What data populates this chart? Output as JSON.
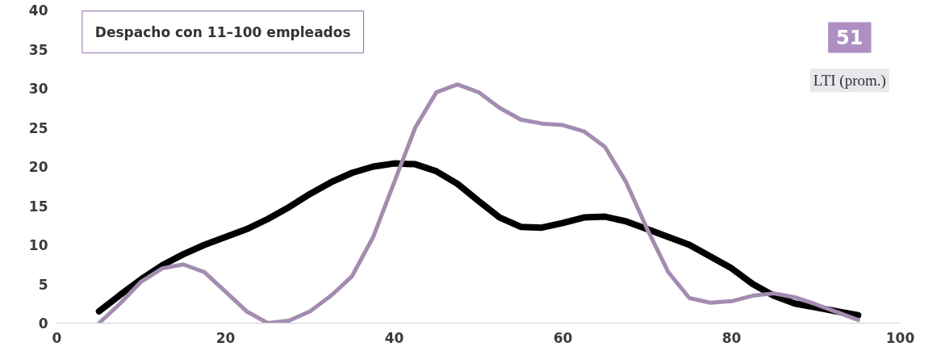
{
  "chart_data": {
    "type": "line",
    "title": "Despacho con 11–100 empleados",
    "annotations": [
      "51",
      "LTI (prom.)"
    ],
    "xlim": [
      0,
      100
    ],
    "xticks": [
      0,
      20,
      40,
      60,
      80,
      100
    ],
    "ylim": [
      0,
      40
    ],
    "yticks": [
      0,
      5,
      10,
      15,
      20,
      25,
      30,
      35,
      40
    ],
    "grid": false,
    "marker": "none",
    "line_style": "solid",
    "series": [
      {
        "color": "#000000",
        "x": [
          5,
          7.5,
          10,
          12.5,
          15,
          17.5,
          20,
          22.5,
          25,
          27.5,
          30,
          32.5,
          35,
          37.5,
          40,
          42.5,
          45,
          47.5,
          50,
          52.5,
          55,
          57.5,
          60,
          62.5,
          65,
          67.5,
          70,
          72.5,
          75,
          77.5,
          80,
          82.5,
          85,
          87.5,
          90,
          92.5,
          95
        ],
        "values": [
          1.5,
          3.6,
          5.6,
          7.4,
          8.8,
          10,
          11,
          12,
          13.3,
          14.8,
          16.5,
          18,
          19.2,
          20,
          20.4,
          20.3,
          19.4,
          17.8,
          15.6,
          13.5,
          12.3,
          12.2,
          12.8,
          13.5,
          13.6,
          13,
          12,
          11,
          10,
          8.5,
          7,
          5,
          3.5,
          2.5,
          2,
          1.5,
          1
        ]
      },
      {
        "color": "#a38cb0",
        "x": [
          5,
          7.5,
          10,
          12.5,
          15,
          17.5,
          20,
          22.5,
          25,
          27.5,
          30,
          32.5,
          35,
          37.5,
          40,
          42.5,
          45,
          47.5,
          50,
          52.5,
          55,
          57.5,
          60,
          62.5,
          65,
          67.5,
          70,
          72.5,
          75,
          77.5,
          80,
          82.5,
          85,
          87.5,
          90,
          92.5,
          95
        ],
        "values": [
          0,
          2.5,
          5.3,
          7,
          7.5,
          6.5,
          4,
          1.5,
          0,
          0.3,
          1.5,
          3.5,
          6,
          11,
          18,
          25,
          29.5,
          30.5,
          29.5,
          27.5,
          26,
          25.5,
          25.3,
          24.5,
          22.5,
          18,
          12,
          6.5,
          3.2,
          2.6,
          2.8,
          3.5,
          3.8,
          3.3,
          2.4,
          1.4,
          0.4
        ]
      }
    ]
  }
}
